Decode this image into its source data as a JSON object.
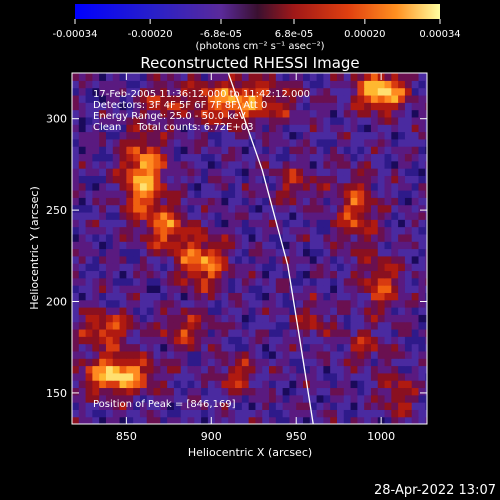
{
  "colorbar": {
    "tick_labels": [
      "-0.00034",
      "-0.00020",
      "-6.8e-05",
      "6.8e-05",
      "0.00020",
      "0.00034"
    ],
    "ticks": [
      -0.00034,
      -0.0002,
      -6.8e-05,
      6.8e-05,
      0.0002,
      0.00034
    ],
    "range": [
      -0.00034,
      0.00034
    ],
    "unit_label": "(photons cm⁻² s⁻¹ asec⁻²)"
  },
  "chart_data": {
    "type": "heatmap",
    "title": "Reconstructed RHESSI Image",
    "xlabel": "Heliocentric X (arcsec)",
    "ylabel": "Heliocentric Y (arcsec)",
    "xlim": [
      818,
      1027
    ],
    "ylim": [
      133,
      325
    ],
    "xticks": [
      850,
      900,
      950,
      1000
    ],
    "yticks": [
      150,
      200,
      250,
      300
    ],
    "info_lines": [
      "17-Feb-2005 11:36:12.000 to 11:42:12.000",
      "Detectors: 3F 4F 5F 6F 7F 8F, Att 0",
      "Energy Range: 25.0 - 50.0 keV",
      "Clean     Total counts: 6.72E+03"
    ],
    "peak_label": "Position of Peak = [846,169]",
    "peak_position": [
      846,
      169
    ],
    "limb_points": [
      [
        910,
        325
      ],
      [
        930,
        272
      ],
      [
        945,
        220
      ],
      [
        952,
        180
      ],
      [
        960,
        133
      ]
    ]
  },
  "footer": {
    "timestamp": "28-Apr-2022 13:07"
  }
}
